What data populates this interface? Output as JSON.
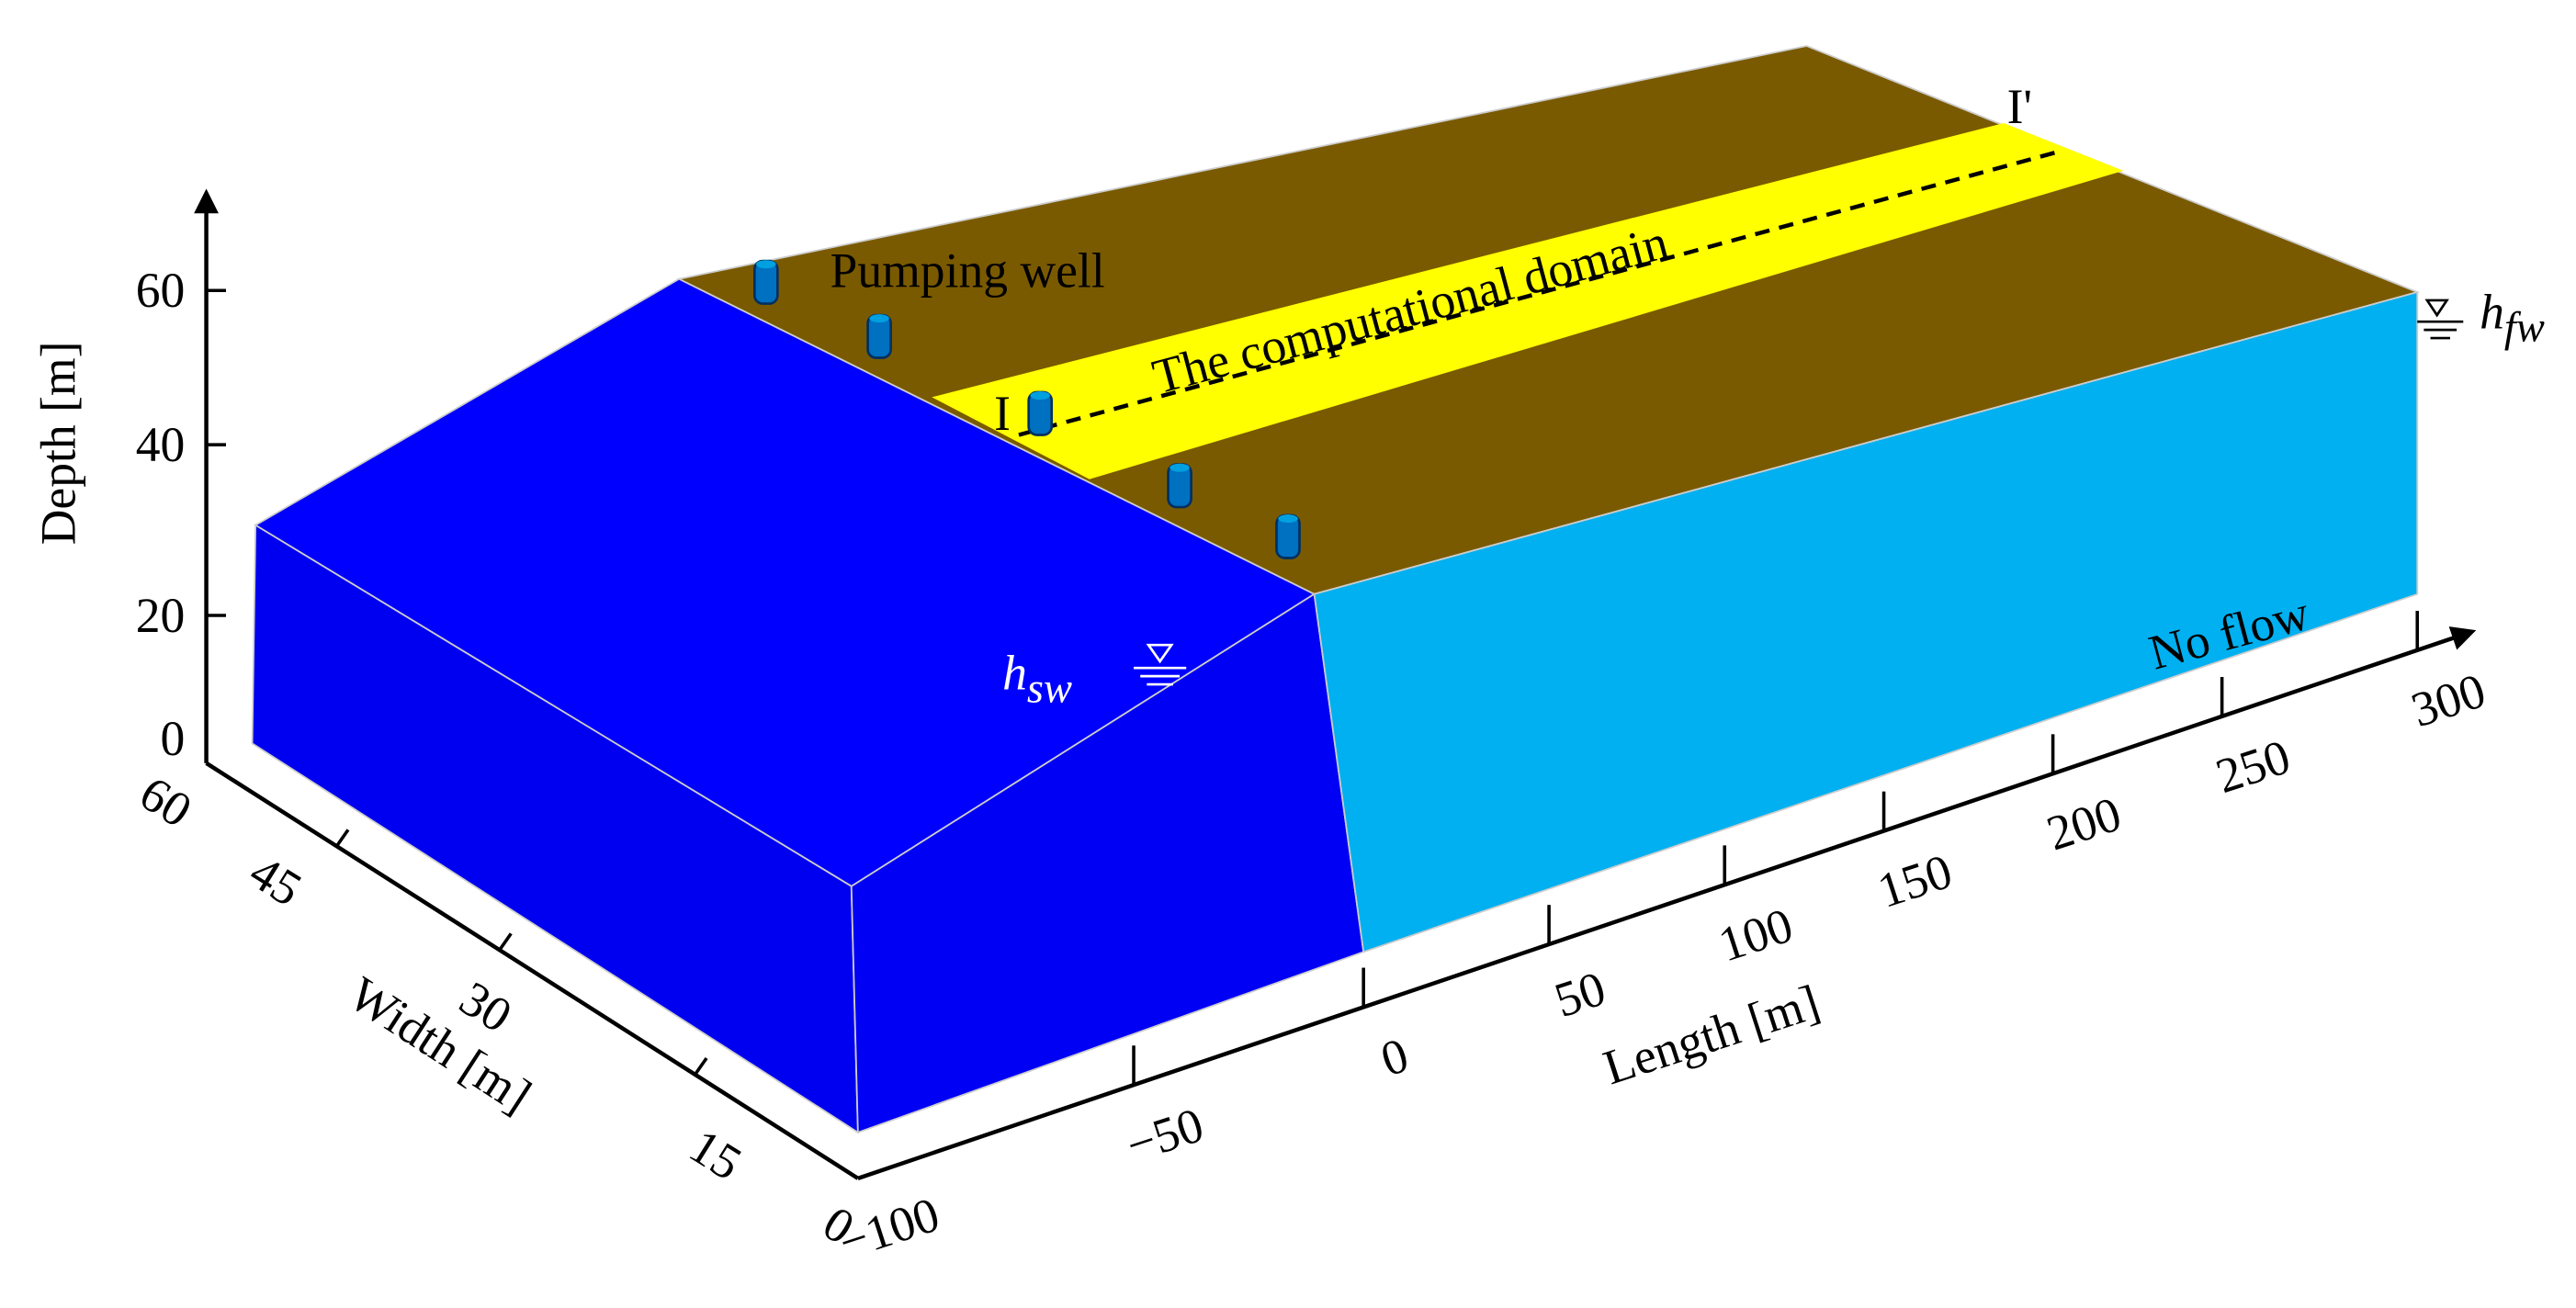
{
  "labels": {
    "pumping_well": "Pumping well",
    "domain": "The computational domain",
    "section_start": "I",
    "section_end": "I'",
    "no_flow": "No flow",
    "h_sw": {
      "base": "h",
      "sub": "sw"
    },
    "h_fw": {
      "base": "h",
      "sub": "fw"
    }
  },
  "axes": {
    "depth": {
      "title": "Depth [m]",
      "ticks": [
        "0",
        "20",
        "40",
        "60"
      ]
    },
    "width": {
      "title": "Width [m]",
      "ticks": [
        "60",
        "45",
        "30",
        "15",
        "0"
      ]
    },
    "length": {
      "title": "Length [m]",
      "ticks": [
        "−100",
        "−50",
        "0",
        "50",
        "100",
        "150",
        "200",
        "250",
        "300"
      ]
    }
  }
}
